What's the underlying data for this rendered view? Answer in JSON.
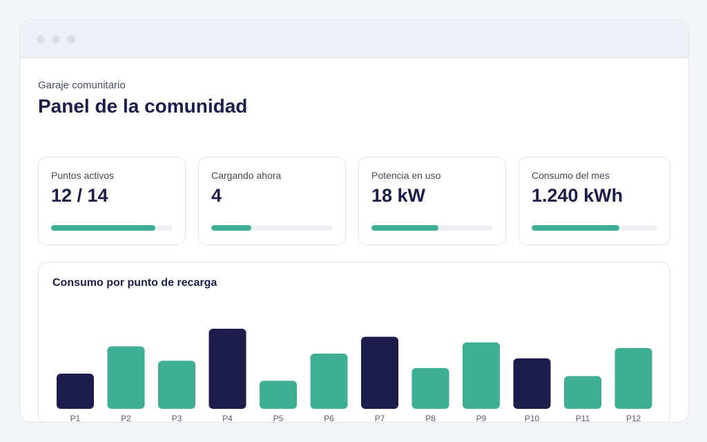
{
  "header": {
    "subtitle": "Garaje comunitario",
    "title": "Panel de la comunidad"
  },
  "stats": [
    {
      "label": "Puntos activos",
      "value": "12 / 14",
      "progress": 0.857
    },
    {
      "label": "Cargando ahora",
      "value": "4",
      "progress": 0.33
    },
    {
      "label": "Potencia en uso",
      "value": "18 kW",
      "progress": 0.55
    },
    {
      "label": "Consumo del mes",
      "value": "1.240 kWh",
      "progress": 0.7
    }
  ],
  "colors": {
    "accent": "#3eaf95",
    "highlight": "#1b1d4b",
    "track": "#eef0f4"
  },
  "chart_data": {
    "type": "bar",
    "title": "Consumo por punto de recarga",
    "categories": [
      "P1",
      "P2",
      "P3",
      "P4",
      "P5",
      "P6",
      "P7",
      "P8",
      "P9",
      "P10",
      "P11",
      "P12"
    ],
    "values": [
      44,
      78,
      60,
      100,
      35,
      69,
      90,
      51,
      83,
      63,
      41,
      76
    ],
    "highlighted": [
      "P1",
      "P4",
      "P7",
      "P10"
    ],
    "ylim": [
      0,
      100
    ],
    "grid": false,
    "legend": "none"
  }
}
